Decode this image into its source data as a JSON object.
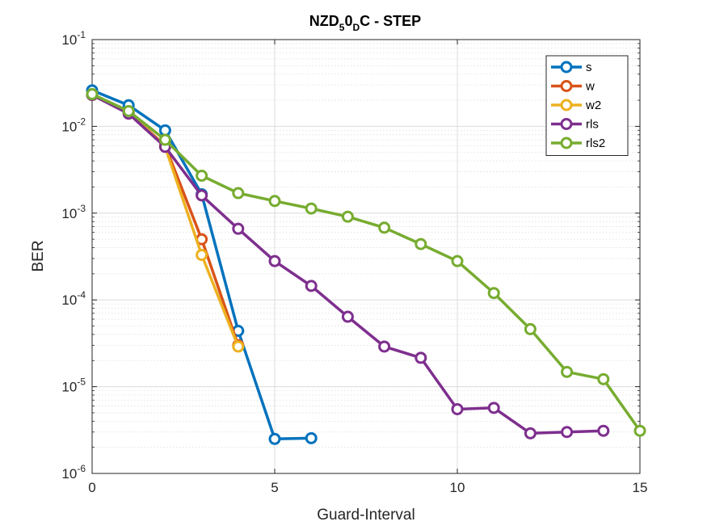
{
  "chart_data": {
    "type": "line",
    "title": "NZD_5 0_D C - STEP",
    "title_parts": {
      "t1": "NZD",
      "s1": "5",
      "t2": "0",
      "s2": "D",
      "t3": "C - STEP"
    },
    "xlabel": "Guard-Interval",
    "ylabel": "BER",
    "xlim": [
      0,
      15
    ],
    "ylim": [
      1e-06,
      0.1
    ],
    "yscale": "log",
    "xticks": [
      0,
      5,
      10,
      15
    ],
    "yticks": [
      {
        "base": "10",
        "exp": "-6"
      },
      {
        "base": "10",
        "exp": "-5"
      },
      {
        "base": "10",
        "exp": "-4"
      },
      {
        "base": "10",
        "exp": "-3"
      },
      {
        "base": "10",
        "exp": "-2"
      },
      {
        "base": "10",
        "exp": "-1"
      }
    ],
    "grid": true,
    "legend_position": "top-right",
    "series": [
      {
        "name": "s",
        "color": "#0072BD",
        "x": [
          0,
          1,
          2,
          3,
          4,
          5,
          6
        ],
        "y": [
          0.026,
          0.0175,
          0.009,
          0.00165,
          4.4e-05,
          2.5e-06,
          2.55e-06
        ]
      },
      {
        "name": "w",
        "color": "#D95319",
        "x": [
          0,
          1,
          2,
          3,
          4
        ],
        "y": [
          0.023,
          0.0145,
          0.006,
          0.0005,
          3e-05
        ]
      },
      {
        "name": "w2",
        "color": "#EDB120",
        "x": [
          0,
          1,
          2,
          3,
          4
        ],
        "y": [
          0.0235,
          0.0148,
          0.0058,
          0.00033,
          2.9e-05
        ]
      },
      {
        "name": "rls",
        "color": "#7E2F8E",
        "x": [
          0,
          1,
          2,
          3,
          4,
          5,
          6,
          7,
          8,
          9,
          10,
          11,
          12,
          13,
          14
        ],
        "y": [
          0.023,
          0.014,
          0.0058,
          0.0016,
          0.00066,
          0.00028,
          0.000145,
          6.4e-05,
          2.9e-05,
          2.15e-05,
          5.5e-06,
          5.7e-06,
          2.9e-06,
          3e-06,
          3.1e-06
        ]
      },
      {
        "name": "rls2",
        "color": "#77AC30",
        "x": [
          0,
          1,
          2,
          3,
          4,
          5,
          6,
          7,
          8,
          9,
          10,
          11,
          12,
          13,
          14,
          15
        ],
        "y": [
          0.0235,
          0.015,
          0.007,
          0.0027,
          0.0017,
          0.00138,
          0.00113,
          0.00091,
          0.00068,
          0.00044,
          0.00028,
          0.00012,
          4.6e-05,
          1.48e-05,
          1.22e-05,
          3.1e-06
        ]
      }
    ]
  }
}
